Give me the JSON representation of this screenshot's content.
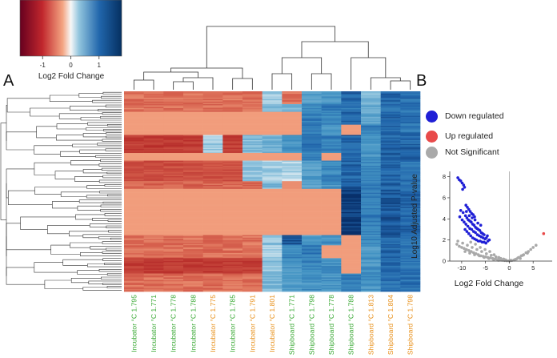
{
  "panels": {
    "a": "A",
    "b": "B"
  },
  "colors": {
    "down": "#1f1fd6",
    "up": "#e84a4a",
    "ns": "#a9a9a9",
    "heat_low": "#a50f15",
    "heat_mid_low": "#f4a582",
    "heat_mid": "#f7f7f7",
    "heat_mid_high": "#92c5de",
    "heat_high": "#08306b"
  },
  "chart_data": [
    {
      "type": "heatmap",
      "colorbar": {
        "label": "Log2 Fold Change",
        "ticks": [
          {
            "value": -1,
            "label": "-1"
          },
          {
            "value": 0,
            "label": "0"
          },
          {
            "value": 1,
            "label": "1"
          }
        ],
        "range": [
          -1.8,
          1.8
        ]
      },
      "columns": [
        {
          "label": "Incubator °C 1.795",
          "group": "incubator"
        },
        {
          "label": "Incubator °C 1.771",
          "group": "incubator"
        },
        {
          "label": "Incubator °C 1.778",
          "group": "incubator"
        },
        {
          "label": "Incubator °C 1.788",
          "group": "incubator"
        },
        {
          "label": "Incubator °C 1.775",
          "group": "incubator-orange"
        },
        {
          "label": "Incubator °C 1.785",
          "group": "incubator"
        },
        {
          "label": "Incubator °C 1.791",
          "group": "incubator-orange"
        },
        {
          "label": "Incubator °C 1.801",
          "group": "incubator-orange"
        },
        {
          "label": "Shipboard °C 1.771",
          "group": "shipboard"
        },
        {
          "label": "Shipboard °C 1.798",
          "group": "shipboard"
        },
        {
          "label": "Shipboard °C 1.778",
          "group": "shipboard"
        },
        {
          "label": "Shipboard °C 1.788",
          "group": "shipboard"
        },
        {
          "label": "Shipboard °C 1.813",
          "group": "shipboard-orange"
        },
        {
          "label": "Shipboard °C 1.804",
          "group": "shipboard-orange"
        },
        {
          "label": "Shipboard °C 1.798",
          "group": "shipboard-orange"
        }
      ],
      "label_colors": {
        "incubator": "#3aa935",
        "incubator-orange": "#e8901a",
        "shipboard": "#3aa935",
        "shipboard-orange": "#e8901a"
      },
      "row_blocks": [
        {
          "rows": 10,
          "values": [
            -0.8,
            -0.8,
            -0.8,
            -0.8,
            -0.8,
            -0.8,
            -0.8,
            0.4,
            -0.8,
            0.9,
            1.0,
            1.4,
            0.6,
            1.4,
            1.3
          ]
        },
        {
          "rows": 6,
          "values": [
            -0.8,
            -0.8,
            -0.8,
            -0.8,
            -0.8,
            -0.8,
            -0.8,
            0.6,
            0.7,
            1.0,
            1.2,
            1.3,
            0.8,
            1.3,
            1.3
          ]
        },
        {
          "rows": 10,
          "values": [
            -0.5,
            -0.5,
            -0.5,
            -0.5,
            -0.5,
            -0.5,
            -0.5,
            -0.5,
            -0.5,
            1.2,
            1.1,
            1.4,
            0.8,
            1.4,
            1.3
          ]
        },
        {
          "rows": 8,
          "values": [
            -0.5,
            -0.5,
            -0.5,
            -0.5,
            -0.5,
            -0.5,
            -0.5,
            -0.5,
            -0.5,
            1.2,
            1.0,
            -0.5,
            1.2,
            1.4,
            1.3
          ]
        },
        {
          "rows": 14,
          "values": [
            -1.3,
            -1.3,
            -1.3,
            -1.3,
            0.4,
            -1.3,
            0.6,
            0.7,
            1.0,
            1.3,
            1.2,
            1.4,
            1.0,
            1.4,
            1.4
          ]
        },
        {
          "rows": 6,
          "values": [
            -0.5,
            -0.5,
            -0.5,
            -0.5,
            -0.5,
            -0.5,
            -0.5,
            -0.5,
            -0.5,
            1.2,
            -0.5,
            1.4,
            1.0,
            1.4,
            1.4
          ]
        },
        {
          "rows": 16,
          "values": [
            -1.1,
            -1.1,
            -1.1,
            -1.1,
            -1.1,
            -1.1,
            0.5,
            0.4,
            0.3,
            0.9,
            1.1,
            1.4,
            1.1,
            1.4,
            1.3
          ]
        },
        {
          "rows": 6,
          "values": [
            -0.9,
            -0.9,
            -0.9,
            -0.9,
            -0.9,
            -0.9,
            -0.9,
            0.6,
            -0.6,
            0.9,
            1.0,
            1.5,
            1.2,
            1.4,
            1.3
          ]
        },
        {
          "rows": 36,
          "values": [
            -0.5,
            -0.5,
            -0.5,
            -0.5,
            -0.5,
            -0.5,
            -0.5,
            -0.5,
            -0.5,
            -0.5,
            -0.5,
            1.7,
            1.2,
            1.5,
            1.4
          ]
        },
        {
          "rows": 8,
          "values": [
            -0.8,
            -0.8,
            -0.8,
            -0.8,
            -0.8,
            -0.8,
            -0.8,
            0.5,
            1.5,
            0.9,
            1.0,
            -0.5,
            1.1,
            1.4,
            1.3
          ]
        },
        {
          "rows": 10,
          "values": [
            -0.8,
            -0.8,
            -0.8,
            -0.8,
            -0.8,
            -0.8,
            -0.8,
            0.3,
            1.1,
            1.2,
            -0.5,
            -0.5,
            1.0,
            1.4,
            1.3
          ]
        },
        {
          "rows": 12,
          "values": [
            -1.3,
            -1.3,
            -1.3,
            -1.3,
            -1.3,
            -1.3,
            -1.3,
            0.5,
            1.0,
            1.1,
            1.0,
            -0.5,
            1.0,
            1.4,
            1.3
          ]
        },
        {
          "rows": 14,
          "values": [
            -0.8,
            -0.8,
            -0.8,
            -0.8,
            -0.8,
            -0.8,
            -0.8,
            0.6,
            0.9,
            1.0,
            1.0,
            1.2,
            1.0,
            1.3,
            1.3
          ]
        }
      ]
    },
    {
      "type": "scatter",
      "title": "",
      "xlabel": "Log2 Fold Change",
      "ylabel": "Log10 Adjusted P-value",
      "xlim": [
        -12.5,
        9
      ],
      "ylim": [
        0,
        8.5
      ],
      "xticks": [
        -10,
        -5,
        0,
        5
      ],
      "yticks": [
        0,
        2,
        4,
        6,
        8
      ],
      "vline": 0,
      "legend": [
        {
          "key": "down",
          "label": "Down regulated"
        },
        {
          "key": "up",
          "label": "Up regulated"
        },
        {
          "key": "ns",
          "label": "Not Significant"
        }
      ],
      "series": [
        {
          "name": "Down regulated",
          "key": "down",
          "points": [
            [
              -10.8,
              7.9
            ],
            [
              -10.5,
              7.7
            ],
            [
              -10.2,
              7.6
            ],
            [
              -9.9,
              7.4
            ],
            [
              -9.6,
              7.2
            ],
            [
              -9.4,
              7.0
            ],
            [
              -9.8,
              6.8
            ],
            [
              -9.1,
              5.3
            ],
            [
              -8.8,
              5.1
            ],
            [
              -8.5,
              4.9
            ],
            [
              -8.2,
              4.7
            ],
            [
              -7.9,
              4.5
            ],
            [
              -7.6,
              4.4
            ],
            [
              -7.3,
              4.2
            ],
            [
              -10.2,
              4.8
            ],
            [
              -9.7,
              4.6
            ],
            [
              -9.2,
              4.3
            ],
            [
              -8.9,
              4.1
            ],
            [
              -8.6,
              3.9
            ],
            [
              -8.3,
              3.8
            ],
            [
              -8.0,
              3.7
            ],
            [
              -7.7,
              3.5
            ],
            [
              -7.4,
              3.4
            ],
            [
              -7.1,
              3.2
            ],
            [
              -6.8,
              3.1
            ],
            [
              -6.5,
              3.0
            ],
            [
              -6.2,
              2.9
            ],
            [
              -5.9,
              2.7
            ],
            [
              -5.6,
              2.6
            ],
            [
              -5.3,
              2.5
            ],
            [
              -9.9,
              3.9
            ],
            [
              -9.5,
              3.7
            ],
            [
              -9.1,
              3.5
            ],
            [
              -8.7,
              3.3
            ],
            [
              -8.3,
              3.1
            ],
            [
              -7.9,
              3.0
            ],
            [
              -7.5,
              2.8
            ],
            [
              -7.1,
              2.7
            ],
            [
              -6.7,
              2.5
            ],
            [
              -6.3,
              2.4
            ],
            [
              -5.9,
              2.3
            ],
            [
              -5.5,
              2.2
            ],
            [
              -5.1,
              2.1
            ],
            [
              -4.8,
              2.2
            ],
            [
              -4.6,
              2.4
            ],
            [
              -10.4,
              4.2
            ],
            [
              -9.3,
              3.0
            ],
            [
              -8.9,
              2.8
            ],
            [
              -8.5,
              2.6
            ],
            [
              -8.1,
              2.4
            ],
            [
              -7.7,
              2.2
            ],
            [
              -7.3,
              2.1
            ],
            [
              -6.9,
              2.0
            ],
            [
              -6.5,
              1.9
            ],
            [
              -6.1,
              1.9
            ],
            [
              -5.7,
              1.8
            ],
            [
              -5.3,
              1.8
            ],
            [
              -4.9,
              1.7
            ],
            [
              -4.5,
              1.9
            ],
            [
              -4.2,
              2.0
            ],
            [
              -6.0,
              3.4
            ],
            [
              -6.6,
              3.6
            ],
            [
              -7.2,
              3.9
            ],
            [
              -7.8,
              4.1
            ],
            [
              -8.4,
              4.3
            ],
            [
              -9.0,
              4.7
            ]
          ]
        },
        {
          "name": "Up regulated",
          "key": "up",
          "points": [
            [
              7.2,
              2.6
            ]
          ]
        },
        {
          "name": "Not Significant",
          "key": "ns",
          "points": [
            [
              -11.0,
              1.6
            ],
            [
              -10.5,
              1.4
            ],
            [
              -10.0,
              1.3
            ],
            [
              -9.5,
              1.2
            ],
            [
              -9.0,
              1.1
            ],
            [
              -8.5,
              1.0
            ],
            [
              -8.0,
              0.9
            ],
            [
              -7.5,
              0.8
            ],
            [
              -7.0,
              0.7
            ],
            [
              -6.5,
              0.6
            ],
            [
              -6.0,
              0.5
            ],
            [
              -5.5,
              0.45
            ],
            [
              -5.0,
              0.4
            ],
            [
              -4.5,
              0.35
            ],
            [
              -4.0,
              0.3
            ],
            [
              -3.5,
              0.25
            ],
            [
              -3.0,
              0.2
            ],
            [
              -2.5,
              0.15
            ],
            [
              -2.0,
              0.1
            ],
            [
              -1.5,
              0.08
            ],
            [
              -1.0,
              0.05
            ],
            [
              -0.5,
              0.03
            ],
            [
              0.0,
              0.02
            ],
            [
              0.5,
              0.05
            ],
            [
              1.0,
              0.1
            ],
            [
              1.5,
              0.2
            ],
            [
              2.0,
              0.35
            ],
            [
              2.5,
              0.5
            ],
            [
              3.0,
              0.6
            ],
            [
              3.5,
              0.8
            ],
            [
              4.0,
              0.9
            ],
            [
              4.5,
              1.1
            ],
            [
              5.0,
              1.3
            ],
            [
              -10.8,
              1.9
            ],
            [
              -9.8,
              1.7
            ],
            [
              -8.8,
              1.5
            ],
            [
              -7.8,
              1.3
            ],
            [
              -6.8,
              1.1
            ],
            [
              -5.8,
              0.9
            ],
            [
              -4.8,
              0.7
            ],
            [
              -3.8,
              0.55
            ],
            [
              -2.8,
              0.4
            ],
            [
              -1.8,
              0.25
            ],
            [
              -0.8,
              0.12
            ],
            [
              1.8,
              0.3
            ],
            [
              2.8,
              0.55
            ],
            [
              3.8,
              0.75
            ],
            [
              -9.3,
              0.9
            ],
            [
              -8.3,
              0.75
            ],
            [
              -7.3,
              0.6
            ],
            [
              -6.3,
              0.5
            ],
            [
              -5.3,
              0.35
            ],
            [
              -4.3,
              0.25
            ],
            [
              -3.3,
              0.15
            ],
            [
              -2.3,
              0.08
            ],
            [
              -3.2,
              0.6
            ],
            [
              -2.2,
              0.35
            ],
            [
              -1.2,
              0.2
            ],
            [
              0.3,
              0.08
            ],
            [
              1.2,
              0.15
            ],
            [
              2.3,
              0.25
            ],
            [
              -4.1,
              0.9
            ],
            [
              -5.1,
              1.1
            ],
            [
              -6.1,
              1.3
            ],
            [
              -7.1,
              1.6
            ],
            [
              -8.1,
              1.8
            ],
            [
              5.6,
              1.5
            ]
          ]
        }
      ]
    }
  ]
}
